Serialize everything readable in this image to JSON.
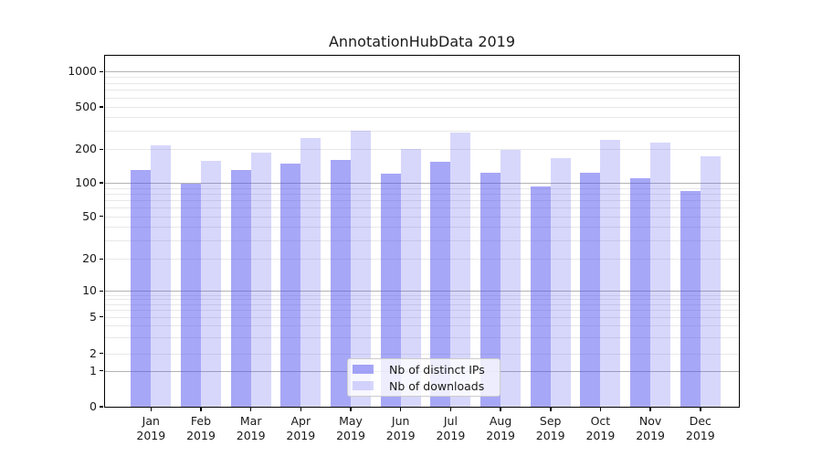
{
  "title": "AnnotationHubData 2019",
  "accent_color": "#5050f0",
  "chart_data": {
    "type": "bar",
    "title": "AnnotationHubData 2019",
    "categories": [
      "Jan",
      "Feb",
      "Mar",
      "Apr",
      "May",
      "Jun",
      "Jul",
      "Aug",
      "Sep",
      "Oct",
      "Nov",
      "Dec"
    ],
    "year": "2019",
    "series": [
      {
        "name": "Nb of distinct IPs",
        "color": "rgba(80,80,240,0.5)",
        "values": [
          130,
          99,
          130,
          150,
          161,
          122,
          155,
          123,
          92,
          124,
          110,
          85
        ]
      },
      {
        "name": "Nb of downloads",
        "color": "rgba(80,80,240,0.23)",
        "values": [
          217,
          157,
          187,
          254,
          300,
          203,
          286,
          197,
          168,
          243,
          231,
          173
        ]
      }
    ],
    "yticks": [
      0,
      1,
      2,
      5,
      10,
      20,
      50,
      100,
      200,
      500,
      1000
    ],
    "ylim": [
      0,
      1300
    ],
    "yscale": "log-like",
    "grid": "horizontal, log minor + major lines",
    "legend_position": "lower center inside plot",
    "xlabel": "",
    "ylabel": ""
  },
  "legend": {
    "items": [
      {
        "label": "Nb of distinct IPs"
      },
      {
        "label": "Nb of downloads"
      }
    ]
  }
}
